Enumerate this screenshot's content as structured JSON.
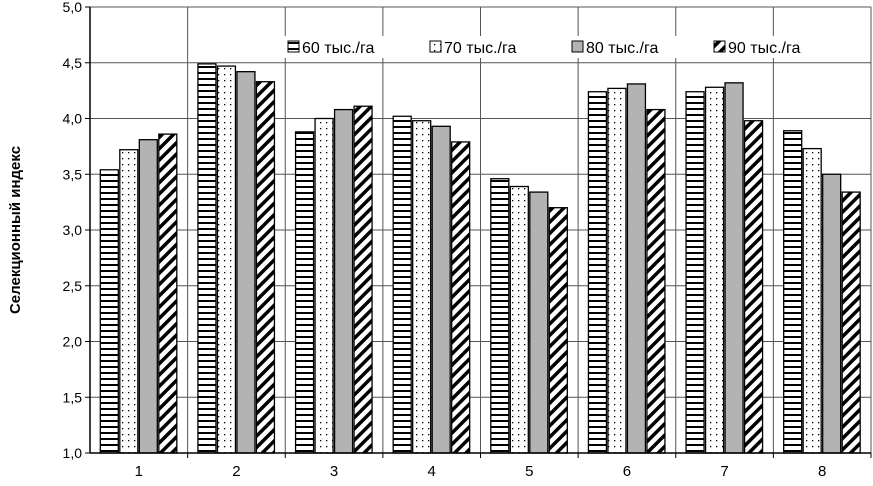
{
  "chart_data": {
    "type": "bar",
    "title": "",
    "xlabel": "",
    "ylabel": "Селекционный индекс",
    "ylim": [
      1.0,
      5.0
    ],
    "yticks": [
      "1,0",
      "1,5",
      "2,0",
      "2,5",
      "3,0",
      "3,5",
      "4,0",
      "4,5",
      "5,0"
    ],
    "grid": true,
    "legend_position": "top",
    "categories": [
      "1",
      "2",
      "3",
      "4",
      "5",
      "6",
      "7",
      "8"
    ],
    "series": [
      {
        "name": "60 тыс./га",
        "pattern": "horizontal-lines",
        "values": [
          3.54,
          4.49,
          3.88,
          4.02,
          3.46,
          4.24,
          4.24,
          3.89
        ]
      },
      {
        "name": "70 тыс./га",
        "pattern": "dots",
        "values": [
          3.72,
          4.47,
          4.0,
          3.98,
          3.39,
          4.27,
          4.28,
          3.73
        ]
      },
      {
        "name": "80 тыс./га",
        "pattern": "gray",
        "color": "#b3b3b3",
        "values": [
          3.81,
          4.42,
          4.08,
          3.93,
          3.34,
          4.31,
          4.32,
          3.5
        ]
      },
      {
        "name": "90 тыс./га",
        "pattern": "diagonal-stripes",
        "values": [
          3.86,
          4.33,
          4.11,
          3.79,
          3.2,
          4.08,
          3.98,
          3.34
        ]
      }
    ]
  }
}
